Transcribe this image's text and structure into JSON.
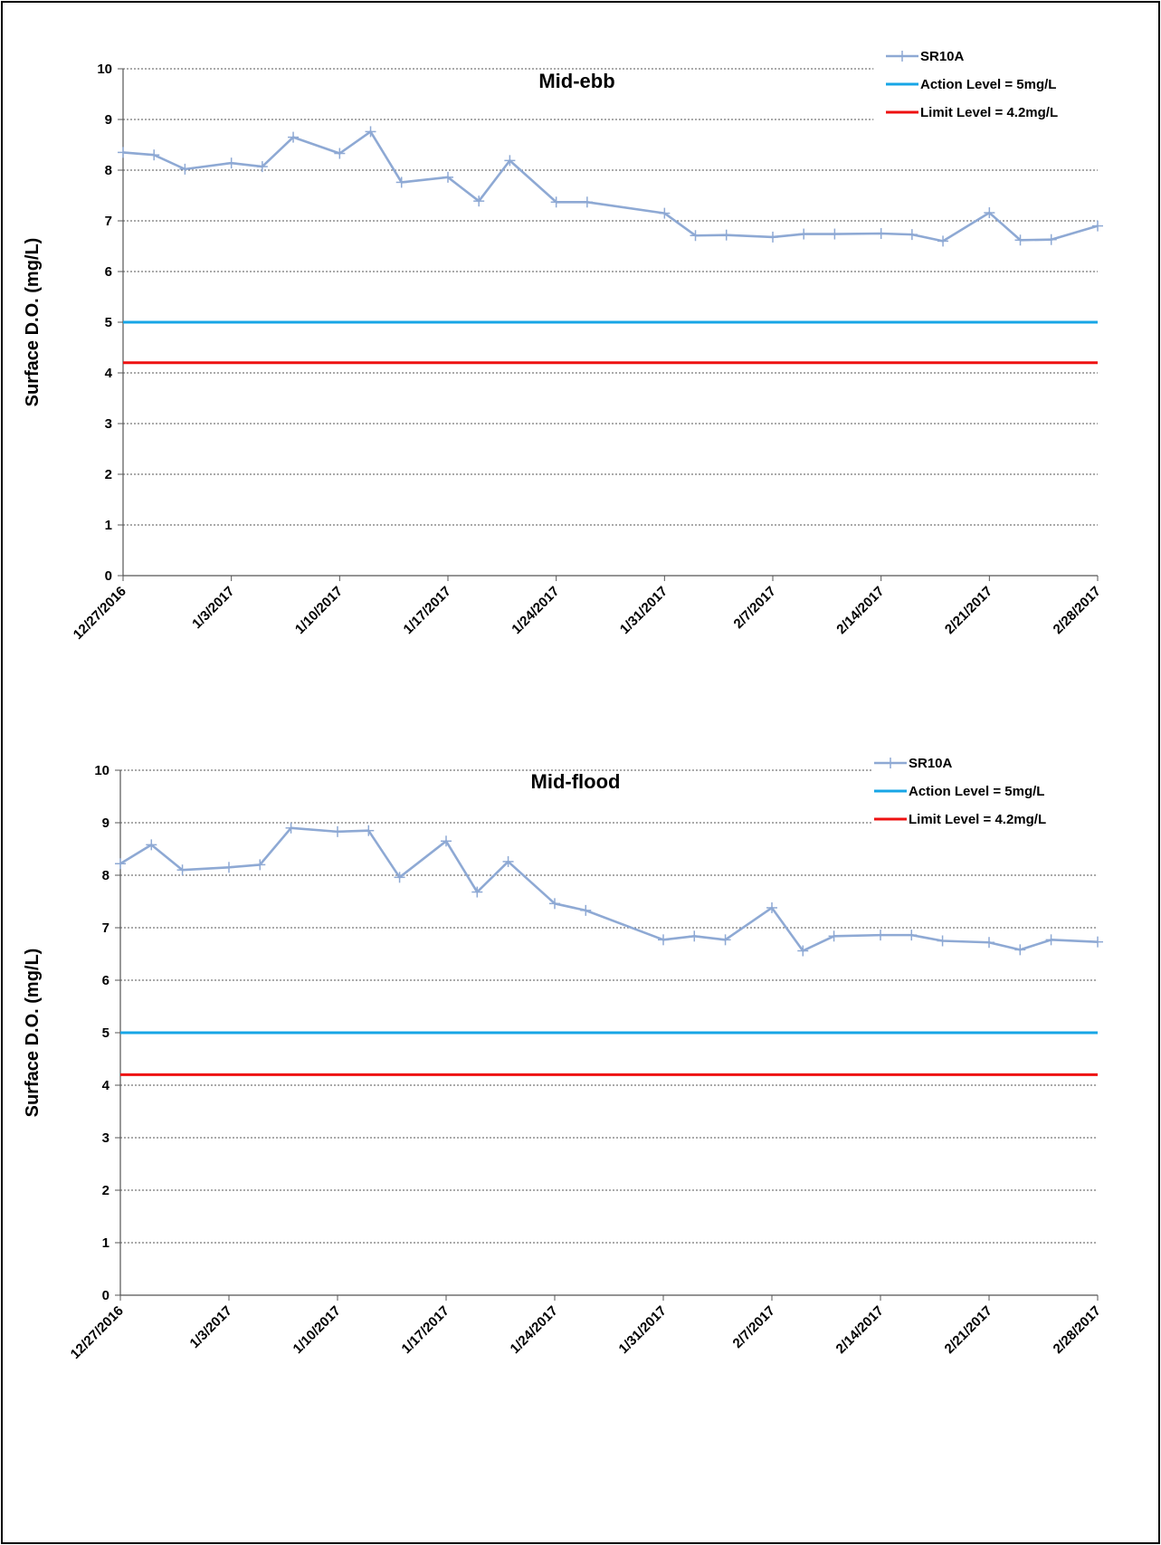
{
  "chart_data": [
    {
      "type": "line",
      "title": "Mid-ebb",
      "ylabel": "Surface D.O. (mg/L)",
      "xlabel": "",
      "ylim": [
        0,
        10
      ],
      "yticks": [
        "0",
        "1",
        "2",
        "3",
        "4",
        "5",
        "6",
        "7",
        "8",
        "9",
        "10"
      ],
      "xlim": [
        "12/27/2016",
        "2/28/2017"
      ],
      "xticks": [
        "12/27/2016",
        "1/3/2017",
        "1/10/2017",
        "1/17/2017",
        "1/24/2017",
        "1/31/2017",
        "2/7/2017",
        "2/14/2017",
        "2/21/2017",
        "2/28/2017"
      ],
      "grid": true,
      "legend": "top-right",
      "series": [
        {
          "name": "SR10A",
          "color": "#8EA9D4",
          "marker": "plus",
          "x": [
            "12/27/2016",
            "12/29/2016",
            "12/31/2016",
            "1/3/2017",
            "1/5/2017",
            "1/7/2017",
            "1/10/2017",
            "1/12/2017",
            "1/14/2017",
            "1/17/2017",
            "1/19/2017",
            "1/21/2017",
            "1/24/2017",
            "1/26/2017",
            "1/31/2017",
            "2/2/2017",
            "2/4/2017",
            "2/7/2017",
            "2/9/2017",
            "2/11/2017",
            "2/14/2017",
            "2/16/2017",
            "2/18/2017",
            "2/21/2017",
            "2/23/2017",
            "2/25/2017",
            "2/28/2017"
          ],
          "values": [
            8.35,
            8.3,
            8.02,
            8.14,
            8.07,
            8.65,
            8.33,
            8.76,
            7.76,
            7.86,
            7.39,
            8.19,
            7.37,
            7.37,
            7.15,
            6.71,
            6.72,
            6.68,
            6.74,
            6.74,
            6.75,
            6.73,
            6.6,
            7.16,
            6.62,
            6.63,
            6.9
          ]
        }
      ],
      "reference_lines": [
        {
          "name": "Action Level = 5mg/L",
          "value": 5,
          "color": "#17A6E6"
        },
        {
          "name": "Limit Level = 4.2mg/L",
          "value": 4.2,
          "color": "#EE1111"
        }
      ]
    },
    {
      "type": "line",
      "title": "Mid-flood",
      "ylabel": "Surface D.O. (mg/L)",
      "xlabel": "",
      "ylim": [
        0,
        10
      ],
      "yticks": [
        "0",
        "1",
        "2",
        "3",
        "4",
        "5",
        "6",
        "7",
        "8",
        "9",
        "10"
      ],
      "xlim": [
        "12/27/2016",
        "2/28/2017"
      ],
      "xticks": [
        "12/27/2016",
        "1/3/2017",
        "1/10/2017",
        "1/17/2017",
        "1/24/2017",
        "1/31/2017",
        "2/7/2017",
        "2/14/2017",
        "2/21/2017",
        "2/28/2017"
      ],
      "grid": true,
      "legend": "top-right",
      "series": [
        {
          "name": "SR10A",
          "color": "#8EA9D4",
          "marker": "plus",
          "x": [
            "12/27/2016",
            "12/29/2016",
            "12/31/2016",
            "1/3/2017",
            "1/5/2017",
            "1/7/2017",
            "1/10/2017",
            "1/12/2017",
            "1/14/2017",
            "1/17/2017",
            "1/19/2017",
            "1/21/2017",
            "1/24/2017",
            "1/26/2017",
            "1/31/2017",
            "2/2/2017",
            "2/4/2017",
            "2/7/2017",
            "2/9/2017",
            "2/11/2017",
            "2/14/2017",
            "2/16/2017",
            "2/18/2017",
            "2/21/2017",
            "2/23/2017",
            "2/25/2017",
            "2/28/2017"
          ],
          "values": [
            8.22,
            8.58,
            8.1,
            8.15,
            8.2,
            8.9,
            8.83,
            8.85,
            7.96,
            8.65,
            7.68,
            8.26,
            7.46,
            7.33,
            6.77,
            6.84,
            6.77,
            7.38,
            6.56,
            6.84,
            6.86,
            6.86,
            6.75,
            6.72,
            6.58,
            6.77,
            6.73
          ]
        }
      ],
      "reference_lines": [
        {
          "name": "Action Level = 5mg/L",
          "value": 5,
          "color": "#17A6E6"
        },
        {
          "name": "Limit Level = 4.2mg/L",
          "value": 4.2,
          "color": "#EE1111"
        }
      ]
    }
  ]
}
